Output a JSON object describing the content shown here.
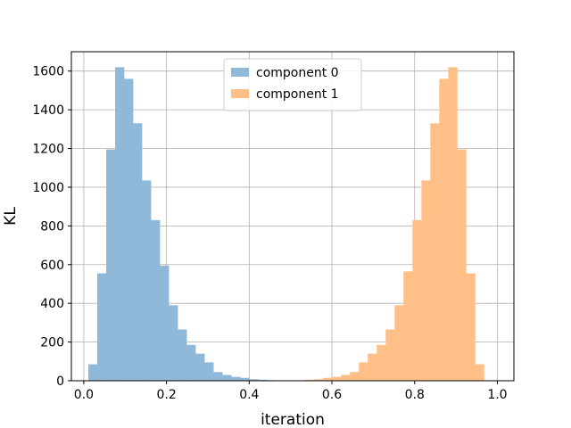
{
  "chart_data": {
    "type": "bar",
    "subtype": "histogram",
    "title": "",
    "xlabel": "iteration",
    "ylabel": "KL",
    "xlim": [
      -0.03,
      1.04
    ],
    "ylim": [
      0,
      1700
    ],
    "xticks": [
      0.0,
      0.2,
      0.4,
      0.6,
      0.8,
      1.0
    ],
    "xtick_labels": [
      "0.0",
      "0.2",
      "0.4",
      "0.6",
      "0.8",
      "1.0"
    ],
    "yticks": [
      0,
      200,
      400,
      600,
      800,
      1000,
      1200,
      1400,
      1600
    ],
    "ytick_labels": [
      "0",
      "200",
      "400",
      "600",
      "800",
      "1000",
      "1200",
      "1400",
      "1600"
    ],
    "grid": true,
    "legend_position": "upper center",
    "series": [
      {
        "name": "component 0",
        "color": "#8fb8d9",
        "bin_edges": [
          0.011,
          0.0326,
          0.0542,
          0.0758,
          0.0974,
          0.119,
          0.1406,
          0.1622,
          0.1838,
          0.2054,
          0.227,
          0.2486,
          0.2702,
          0.2918,
          0.3134,
          0.335,
          0.3566,
          0.3782,
          0.3998,
          0.4214,
          0.443,
          0.4646,
          0.4862
        ],
        "counts": [
          85,
          555,
          1195,
          1620,
          1560,
          1330,
          1035,
          830,
          595,
          390,
          265,
          185,
          140,
          95,
          45,
          30,
          20,
          15,
          8,
          5,
          3,
          2
        ]
      },
      {
        "name": "component 1",
        "color": "#ffbf86",
        "bin_edges": [
          0.514,
          0.5356,
          0.5572,
          0.5788,
          0.6004,
          0.622,
          0.6436,
          0.6652,
          0.6868,
          0.7084,
          0.73,
          0.7516,
          0.7732,
          0.7948,
          0.8164,
          0.838,
          0.8596,
          0.8812,
          0.9028,
          0.9244,
          0.946,
          0.9676,
          0.9892
        ],
        "counts": [
          2,
          5,
          8,
          15,
          20,
          30,
          45,
          95,
          140,
          185,
          265,
          390,
          565,
          830,
          1035,
          1330,
          1560,
          1620,
          1195,
          555,
          85,
          2
        ]
      }
    ]
  }
}
